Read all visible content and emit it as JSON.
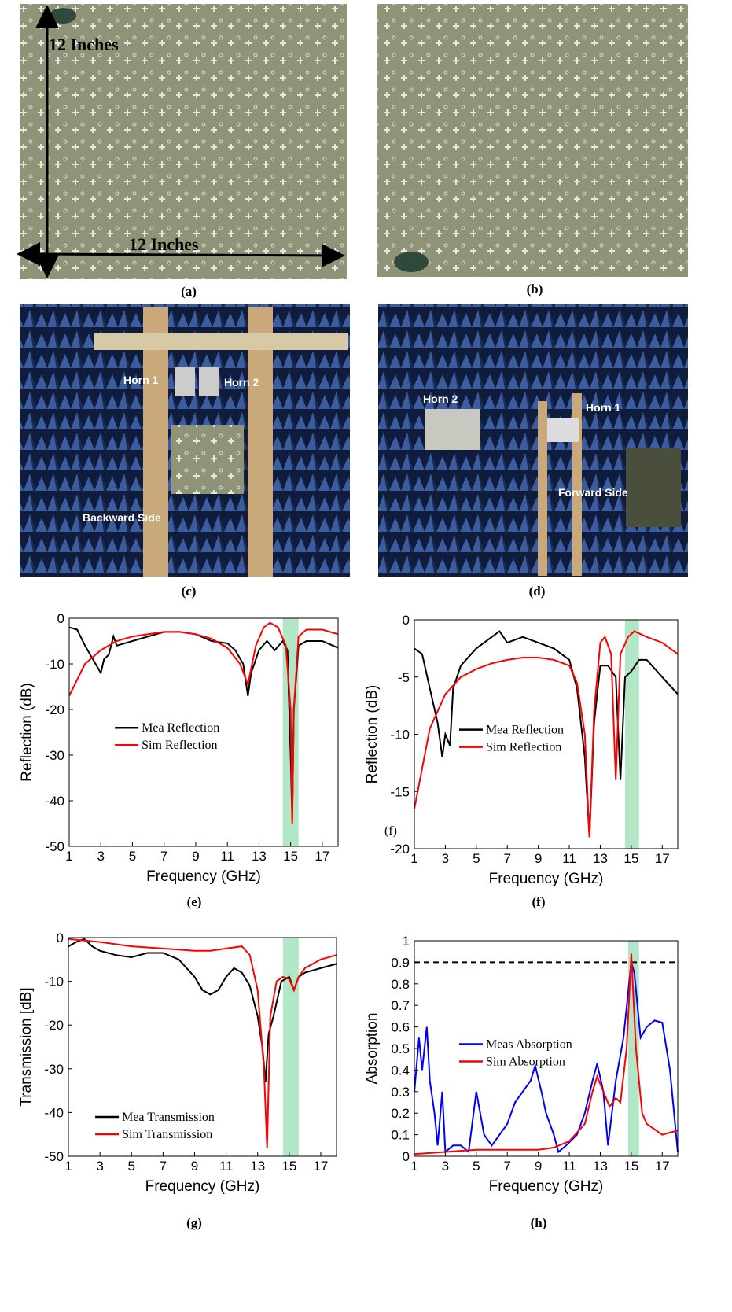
{
  "photos": [
    {
      "caption": "(a)",
      "annotations": [
        "12 Inches",
        "12 Inches"
      ]
    },
    {
      "caption": "(b)",
      "annotations": []
    },
    {
      "caption": "(c)",
      "annotations": [
        "Horn 1",
        "Horn 2",
        "Backward Side"
      ]
    },
    {
      "caption": "(d)",
      "annotations": [
        "Horn 2",
        "Horn 1",
        "Forward Side"
      ]
    }
  ],
  "chart_data": [
    {
      "type": "line",
      "caption": "(e)",
      "x_label": "Frequency (GHz)",
      "y_label": "Reflection (dB)",
      "xlim": [
        1,
        18
      ],
      "xticks": [
        1,
        3,
        5,
        7,
        9,
        11,
        13,
        15,
        17
      ],
      "ylim": [
        -50,
        0
      ],
      "yticks": [
        -50,
        -40,
        -30,
        -20,
        -10,
        0
      ],
      "highlight": [
        14.5,
        15.5
      ],
      "highlight_color": "#9ee0b8",
      "legend": "center-left",
      "series": [
        {
          "name": "Mea Reflection",
          "color": "#000000",
          "x": [
            1,
            1.5,
            2,
            2.5,
            3,
            3.2,
            3.5,
            3.8,
            4,
            5,
            6,
            7,
            8,
            9,
            10,
            11,
            11.5,
            12,
            12.3,
            12.5,
            13,
            13.5,
            14,
            14.5,
            14.8,
            15,
            15.1,
            15.2,
            15.5,
            16,
            17,
            18
          ],
          "values": [
            -2,
            -2.5,
            -6,
            -9,
            -12,
            -9,
            -8,
            -4,
            -6,
            -5,
            -4,
            -3,
            -3,
            -3.5,
            -5,
            -5.5,
            -7,
            -10,
            -17,
            -12,
            -7,
            -5,
            -7,
            -5,
            -7,
            -30,
            -44,
            -20,
            -6,
            -5,
            -5,
            -6.5
          ]
        },
        {
          "name": "Sim Reflection",
          "color": "#ff0000",
          "x": [
            1,
            2,
            3,
            4,
            5,
            6,
            7,
            8,
            9,
            10,
            11,
            11.8,
            12.3,
            12.8,
            13.3,
            13.7,
            14.2,
            14.7,
            15,
            15.1,
            15.2,
            15.5,
            16,
            17,
            18
          ],
          "values": [
            -17,
            -10,
            -7,
            -5,
            -4,
            -3.5,
            -3,
            -3,
            -3.5,
            -4.5,
            -6.5,
            -10,
            -14.5,
            -6,
            -2,
            -1,
            -2,
            -6,
            -20,
            -45,
            -20,
            -4,
            -2.5,
            -2.5,
            -3.5
          ]
        }
      ]
    },
    {
      "type": "line",
      "caption": "(f)",
      "annotation": "(f)",
      "x_label": "Frequency (GHz)",
      "y_label": "Reflection (dB)",
      "xlim": [
        1,
        18
      ],
      "xticks": [
        1,
        3,
        5,
        7,
        9,
        11,
        13,
        15,
        17
      ],
      "ylim": [
        -20,
        0
      ],
      "yticks": [
        -20,
        -15,
        -10,
        -5,
        0
      ],
      "highlight": [
        14.6,
        15.5
      ],
      "highlight_color": "#9ee0b8",
      "legend": "center-left",
      "series": [
        {
          "name": "Mea Reflection",
          "color": "#000000",
          "x": [
            1,
            1.5,
            2,
            2.5,
            2.8,
            3,
            3.3,
            3.5,
            4,
            5,
            6,
            6.5,
            7,
            8,
            9,
            10,
            11,
            11.5,
            12,
            12.3,
            12.6,
            13,
            13.5,
            14,
            14.3,
            14.6,
            15,
            15.5,
            16,
            17,
            18
          ],
          "values": [
            -2.5,
            -3,
            -6,
            -9,
            -12,
            -10,
            -11,
            -6,
            -4,
            -2.5,
            -1.5,
            -1,
            -2,
            -1.5,
            -2,
            -2.5,
            -3.5,
            -6,
            -12,
            -19,
            -9,
            -4,
            -4,
            -5,
            -14,
            -5,
            -4.5,
            -3.5,
            -3.5,
            -5,
            -6.5
          ]
        },
        {
          "name": "Sim Reflection",
          "color": "#ff0000",
          "x": [
            1,
            2,
            3,
            4,
            5,
            6,
            7,
            8,
            9,
            10,
            11,
            11.5,
            12,
            12.3,
            12.6,
            13,
            13.3,
            13.7,
            14,
            14.3,
            14.8,
            15.2,
            16,
            17,
            18
          ],
          "values": [
            -16.5,
            -9.5,
            -6.5,
            -5,
            -4.3,
            -3.8,
            -3.5,
            -3.3,
            -3.3,
            -3.5,
            -4,
            -5.5,
            -10,
            -19,
            -8,
            -2,
            -1.5,
            -3,
            -14,
            -3,
            -1.5,
            -1,
            -1.5,
            -2,
            -3
          ]
        }
      ]
    },
    {
      "type": "line",
      "caption": "(g)",
      "x_label": "Frequency (GHz)",
      "y_label": "Transmission [dB]",
      "xlim": [
        1,
        18
      ],
      "xticks": [
        1,
        3,
        5,
        7,
        9,
        11,
        13,
        15,
        17
      ],
      "ylim": [
        -50,
        0
      ],
      "yticks": [
        -50,
        -40,
        -30,
        -20,
        -10,
        0
      ],
      "highlight": [
        14.6,
        15.6
      ],
      "highlight_color": "#9ee0b8",
      "legend": "lower-left",
      "series": [
        {
          "name": "Mea Transmission",
          "color": "#000000",
          "x": [
            1,
            1.5,
            2,
            2.5,
            3,
            4,
            5,
            6,
            7,
            8,
            9,
            9.5,
            10,
            10.5,
            11,
            11.5,
            12,
            12.5,
            13,
            13.3,
            13.5,
            13.7,
            14,
            14.5,
            15,
            15.3,
            15.6,
            16,
            17,
            18
          ],
          "values": [
            -2,
            -1,
            -0.3,
            -2,
            -3,
            -4,
            -4.5,
            -3.5,
            -3.5,
            -5,
            -9,
            -12,
            -13,
            -12,
            -9,
            -7,
            -8,
            -11,
            -18,
            -25,
            -33,
            -22,
            -18,
            -10,
            -9,
            -12,
            -9,
            -8,
            -7,
            -6
          ]
        },
        {
          "name": "Sim Transmission",
          "color": "#ff0000",
          "x": [
            1,
            3,
            5,
            7,
            9,
            10,
            11,
            12,
            12.5,
            13,
            13.4,
            13.6,
            13.8,
            14.2,
            14.6,
            15,
            15.3,
            15.6,
            16,
            17,
            18
          ],
          "values": [
            -0.3,
            -1,
            -2,
            -2.5,
            -3,
            -3,
            -2.5,
            -2,
            -4,
            -12,
            -30,
            -48,
            -18,
            -10,
            -9,
            -9.5,
            -12,
            -9,
            -7,
            -5,
            -4
          ]
        }
      ]
    },
    {
      "type": "line",
      "caption": "(h)",
      "x_label": "Frequency (GHz)",
      "y_label": "Absorption",
      "xlim": [
        1,
        18
      ],
      "xticks": [
        1,
        3,
        5,
        7,
        9,
        11,
        13,
        15,
        17
      ],
      "ylim": [
        0,
        1
      ],
      "yticks": [
        0,
        0.1,
        0.2,
        0.3,
        0.4,
        0.5,
        0.6,
        0.7,
        0.8,
        0.9,
        1
      ],
      "highlight": [
        14.8,
        15.5
      ],
      "highlight_color": "#9ee0b8",
      "reference_line": 0.9,
      "legend": "center-left",
      "series": [
        {
          "name": "Meas Absorption",
          "color": "#0000ff",
          "x": [
            1,
            1.3,
            1.5,
            1.8,
            2,
            2.3,
            2.5,
            2.8,
            3,
            3.5,
            4,
            4.5,
            5,
            5.5,
            6,
            6.5,
            7,
            7.5,
            8,
            8.5,
            8.8,
            9.2,
            9.5,
            10,
            10.3,
            10.8,
            11.5,
            12,
            12.5,
            12.8,
            13.2,
            13.5,
            14,
            14.5,
            15,
            15.2,
            15.6,
            16,
            16.5,
            17,
            17.5,
            18
          ],
          "values": [
            0.3,
            0.55,
            0.4,
            0.6,
            0.35,
            0.2,
            0.05,
            0.3,
            0.02,
            0.05,
            0.05,
            0.02,
            0.3,
            0.1,
            0.05,
            0.1,
            0.15,
            0.25,
            0.3,
            0.35,
            0.42,
            0.3,
            0.2,
            0.1,
            0.02,
            0.05,
            0.1,
            0.2,
            0.35,
            0.43,
            0.3,
            0.05,
            0.35,
            0.55,
            0.9,
            0.85,
            0.55,
            0.6,
            0.63,
            0.62,
            0.4,
            0.02
          ]
        },
        {
          "name": "Sim Absorption",
          "color": "#ff0000",
          "x": [
            1,
            3,
            5,
            7,
            9,
            10,
            11,
            12,
            12.5,
            12.8,
            13.2,
            13.6,
            14,
            14.3,
            14.7,
            15,
            15.3,
            15.7,
            16,
            17,
            18
          ],
          "values": [
            0.01,
            0.02,
            0.03,
            0.03,
            0.03,
            0.04,
            0.07,
            0.15,
            0.3,
            0.37,
            0.3,
            0.23,
            0.27,
            0.25,
            0.5,
            0.94,
            0.5,
            0.2,
            0.15,
            0.1,
            0.12
          ]
        }
      ]
    }
  ]
}
